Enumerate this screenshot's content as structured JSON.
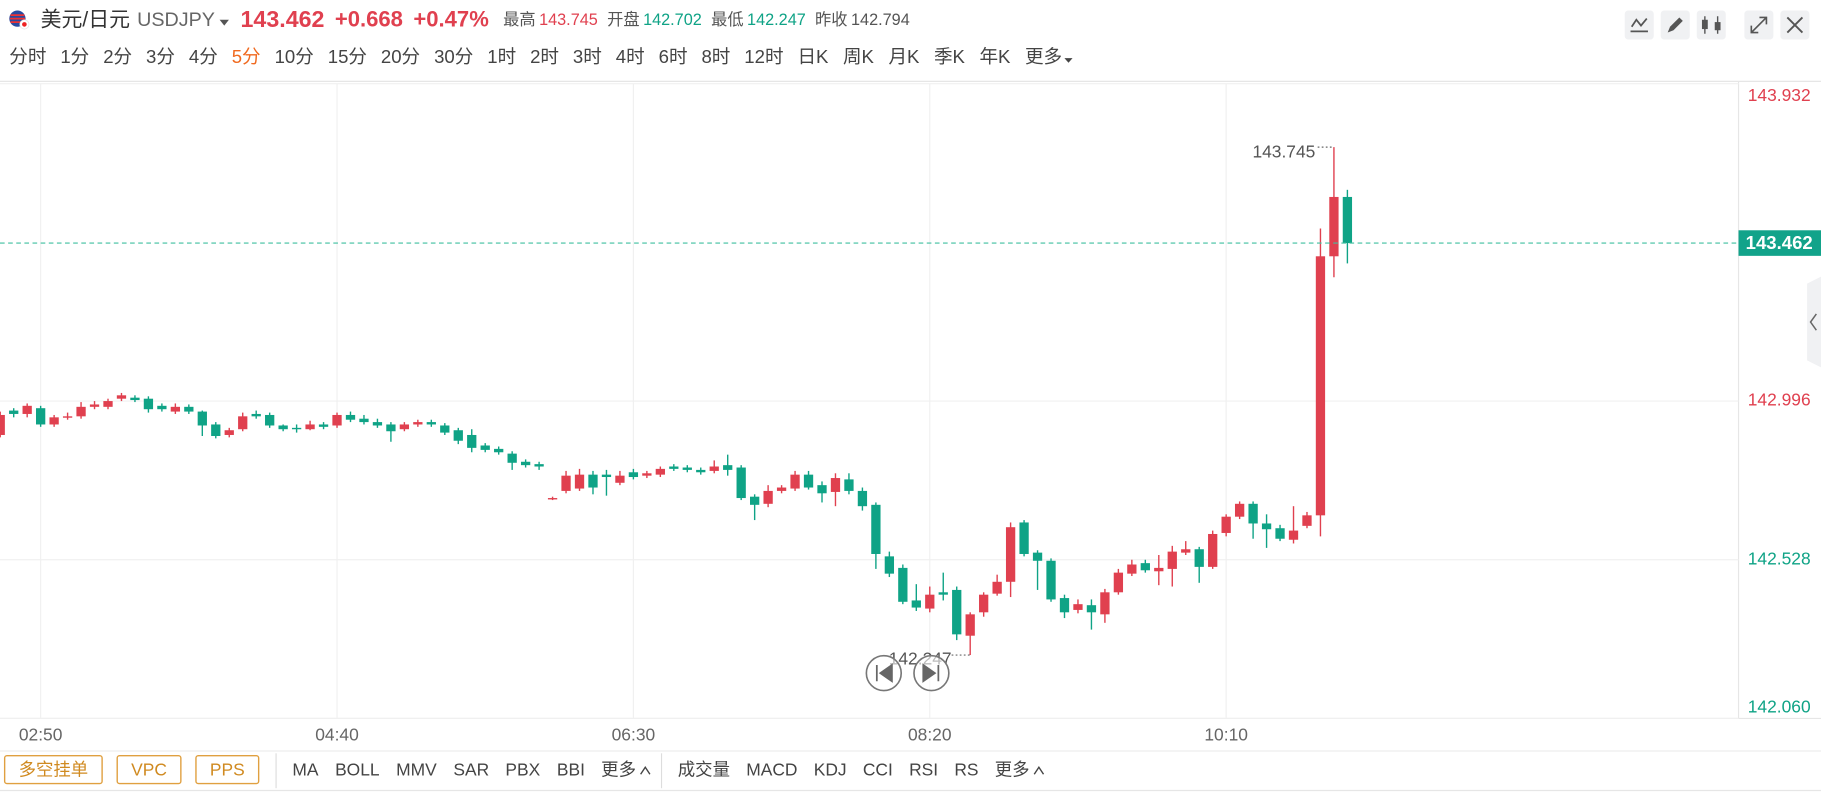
{
  "quote": {
    "name": "美元/日元",
    "code": "USDJPY",
    "change": "+0.668",
    "change_pct": "+0.47%",
    "stats": [
      {
        "label": "最高",
        "value": "143.745",
        "color": "#e0404f"
      },
      {
        "label": "开盘",
        "value": "142.702",
        "color": "#0fa386"
      },
      {
        "label": "最低",
        "value": "142.247",
        "color": "#0fa386"
      },
      {
        "label": "昨收",
        "value": "142.794",
        "color": "#555555"
      }
    ]
  },
  "ui": {
    "timeframes": [
      "分时",
      "1分",
      "2分",
      "3分",
      "4分",
      "5分",
      "10分",
      "15分",
      "20分",
      "30分",
      "1时",
      "2时",
      "3时",
      "4时",
      "6时",
      "8时",
      "12时",
      "日K",
      "周K",
      "月K",
      "季K",
      "年K",
      "更多"
    ],
    "active_timeframe": 5,
    "overlay_buttons": [
      "多空挂单",
      "VPC",
      "PPS"
    ],
    "main_indicators": [
      "MA",
      "BOLL",
      "MMV",
      "SAR",
      "PBX",
      "BBI",
      "更多"
    ],
    "sub_indicators": [
      "成交量",
      "MACD",
      "KDJ",
      "CCI",
      "RSI",
      "RS",
      "更多"
    ]
  },
  "chart_data": {
    "type": "candlestick",
    "up_color": "#e0404f",
    "down_color": "#0fa386",
    "prev_close": 142.794,
    "grid": true,
    "categories": [
      null,
      null,
      null,
      "02:50",
      null,
      null,
      null,
      null,
      null,
      null,
      null,
      null,
      null,
      null,
      null,
      null,
      null,
      null,
      null,
      null,
      null,
      null,
      null,
      null,
      null,
      "04:40",
      null,
      null,
      null,
      null,
      null,
      null,
      null,
      null,
      null,
      null,
      null,
      null,
      null,
      null,
      null,
      null,
      null,
      null,
      null,
      null,
      null,
      "06:30",
      null,
      null,
      null,
      null,
      null,
      null,
      null,
      null,
      null,
      null,
      null,
      null,
      null,
      null,
      null,
      null,
      null,
      null,
      null,
      null,
      null,
      "08:20",
      null,
      null,
      null,
      null,
      null,
      null,
      null,
      null,
      null,
      null,
      null,
      null,
      null,
      null,
      null,
      null,
      null,
      null,
      null,
      null,
      null,
      "10:10",
      null,
      null,
      null,
      null,
      null,
      null,
      null,
      null,
      null
    ],
    "open": [
      142.896,
      142.968,
      142.958,
      142.975,
      142.927,
      142.948,
      142.951,
      142.979,
      142.979,
      143.003,
      143.006,
      143.003,
      142.982,
      142.965,
      142.979,
      142.965,
      142.927,
      142.896,
      142.913,
      142.958,
      142.955,
      142.924,
      142.917,
      142.913,
      142.927,
      142.924,
      142.955,
      142.944,
      142.934,
      142.927,
      142.913,
      142.927,
      142.934,
      142.924,
      142.91,
      142.896,
      142.865,
      142.855,
      142.841,
      142.817,
      142.81,
      142.707,
      142.731,
      142.738,
      142.779,
      142.779,
      142.755,
      142.786,
      142.776,
      142.779,
      142.803,
      142.8,
      142.793,
      142.79,
      142.807,
      142.8,
      142.714,
      142.693,
      142.731,
      142.738,
      142.779,
      142.748,
      142.728,
      142.765,
      142.731,
      142.69,
      142.538,
      142.504,
      142.408,
      142.384,
      142.432,
      142.439,
      142.304,
      142.373,
      142.428,
      142.463,
      142.638,
      142.549,
      142.525,
      142.415,
      142.38,
      142.394,
      142.367,
      142.432,
      142.487,
      142.518,
      142.494,
      142.501,
      142.549,
      142.559,
      142.507,
      142.607,
      142.655,
      142.693,
      142.635,
      142.621,
      142.587,
      142.628,
      142.659,
      143.423,
      143.598
    ],
    "high": [
      142.965,
      142.975,
      142.989,
      142.982,
      142.955,
      142.962,
      142.993,
      142.996,
      143.003,
      143.02,
      143.013,
      143.01,
      142.989,
      142.989,
      142.986,
      142.968,
      142.934,
      142.917,
      142.962,
      142.968,
      142.962,
      142.927,
      142.927,
      142.938,
      142.934,
      142.962,
      142.965,
      142.955,
      142.944,
      142.934,
      142.934,
      142.941,
      142.941,
      142.931,
      142.917,
      142.913,
      142.872,
      142.862,
      142.848,
      142.824,
      142.817,
      142.714,
      142.79,
      142.796,
      142.79,
      142.793,
      142.79,
      142.796,
      142.79,
      142.803,
      142.81,
      142.807,
      142.8,
      142.821,
      142.838,
      142.807,
      142.721,
      142.748,
      142.748,
      142.79,
      142.79,
      142.759,
      142.783,
      142.783,
      142.741,
      142.697,
      142.552,
      142.514,
      142.456,
      142.449,
      142.49,
      142.449,
      142.373,
      142.432,
      142.484,
      142.638,
      142.645,
      142.556,
      142.532,
      142.425,
      142.411,
      142.411,
      142.442,
      142.501,
      142.528,
      142.528,
      142.542,
      142.569,
      142.583,
      142.566,
      142.614,
      142.662,
      142.7,
      142.7,
      142.662,
      142.631,
      142.686,
      142.669,
      143.505,
      143.745,
      143.619
    ],
    "low": [
      142.889,
      142.948,
      142.948,
      142.92,
      142.92,
      142.941,
      142.944,
      142.972,
      142.972,
      142.996,
      142.993,
      142.962,
      142.965,
      142.958,
      142.958,
      142.893,
      142.886,
      142.889,
      142.907,
      142.944,
      142.917,
      142.907,
      142.903,
      142.91,
      142.913,
      142.917,
      142.934,
      142.927,
      142.917,
      142.876,
      142.907,
      142.92,
      142.92,
      142.896,
      142.869,
      142.845,
      142.845,
      142.838,
      142.793,
      142.8,
      142.793,
      142.704,
      142.724,
      142.731,
      142.721,
      142.717,
      142.748,
      142.765,
      142.769,
      142.772,
      142.79,
      142.786,
      142.779,
      142.783,
      142.776,
      142.704,
      142.645,
      142.683,
      142.724,
      142.731,
      142.735,
      142.697,
      142.686,
      142.721,
      142.673,
      142.501,
      142.477,
      142.397,
      142.377,
      142.373,
      142.408,
      142.291,
      142.247,
      142.36,
      142.422,
      142.418,
      142.538,
      142.439,
      142.404,
      142.356,
      142.37,
      142.322,
      142.342,
      142.425,
      142.48,
      142.49,
      142.453,
      142.449,
      142.542,
      142.46,
      142.501,
      142.597,
      142.648,
      142.59,
      142.563,
      142.583,
      142.576,
      142.621,
      142.597,
      143.361,
      143.402
    ],
    "close": [
      142.955,
      142.958,
      142.982,
      142.927,
      142.948,
      142.951,
      142.979,
      142.986,
      142.996,
      143.013,
      142.999,
      142.972,
      142.972,
      142.979,
      142.965,
      142.924,
      142.893,
      142.91,
      142.951,
      142.951,
      142.924,
      142.913,
      142.913,
      142.927,
      142.92,
      142.955,
      142.941,
      142.934,
      142.924,
      142.907,
      142.927,
      142.934,
      142.927,
      142.903,
      142.879,
      142.858,
      142.852,
      142.845,
      142.814,
      142.807,
      142.803,
      142.71,
      142.776,
      142.779,
      142.741,
      142.772,
      142.776,
      142.772,
      142.783,
      142.796,
      142.796,
      142.793,
      142.786,
      142.803,
      142.793,
      142.71,
      142.69,
      142.731,
      142.741,
      142.779,
      142.741,
      142.724,
      142.769,
      142.731,
      142.686,
      142.545,
      142.487,
      142.404,
      142.387,
      142.425,
      142.425,
      142.308,
      142.367,
      142.425,
      142.463,
      142.624,
      142.545,
      142.525,
      142.411,
      142.373,
      142.397,
      142.373,
      142.432,
      142.49,
      142.514,
      142.497,
      142.504,
      142.552,
      142.559,
      142.507,
      142.604,
      142.655,
      142.693,
      142.635,
      142.618,
      142.59,
      142.614,
      142.659,
      143.423,
      143.598,
      143.462
    ],
    "ylim": [
      142.06,
      143.932
    ],
    "yticks": [
      {
        "value": 142.06,
        "label": "142.060"
      },
      142.528,
      142.996,
      143.932
    ]
  }
}
